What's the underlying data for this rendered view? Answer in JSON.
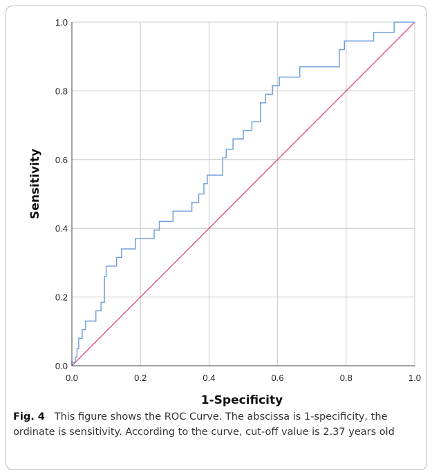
{
  "chart_data": {
    "type": "line",
    "title": "",
    "xlabel": "1-Specificity",
    "ylabel": "Sensitivity",
    "xlim": [
      0,
      1
    ],
    "ylim": [
      0,
      1
    ],
    "grid": true,
    "xticks": [
      "0.0",
      "0.2",
      "0.4",
      "0.6",
      "0.8",
      "1.0"
    ],
    "yticks": [
      "0.0",
      "0.2",
      "0.4",
      "0.6",
      "0.8",
      "1.0"
    ],
    "colors": {
      "roc": "#6fa0dc",
      "reference": "#e05b8a",
      "grid": "#c8c8c8",
      "axis": "#444444"
    },
    "series": [
      {
        "values": [
          [
            0.0,
            0.0
          ],
          [
            0.0,
            0.01
          ],
          [
            0.01,
            0.01
          ],
          [
            0.01,
            0.025
          ],
          [
            0.015,
            0.025
          ],
          [
            0.015,
            0.05
          ],
          [
            0.02,
            0.05
          ],
          [
            0.02,
            0.08
          ],
          [
            0.03,
            0.08
          ],
          [
            0.03,
            0.105
          ],
          [
            0.04,
            0.105
          ],
          [
            0.04,
            0.13
          ],
          [
            0.07,
            0.13
          ],
          [
            0.07,
            0.16
          ],
          [
            0.085,
            0.16
          ],
          [
            0.085,
            0.185
          ],
          [
            0.095,
            0.185
          ],
          [
            0.095,
            0.26
          ],
          [
            0.1,
            0.26
          ],
          [
            0.1,
            0.29
          ],
          [
            0.13,
            0.29
          ],
          [
            0.13,
            0.315
          ],
          [
            0.145,
            0.315
          ],
          [
            0.145,
            0.34
          ],
          [
            0.185,
            0.34
          ],
          [
            0.185,
            0.37
          ],
          [
            0.24,
            0.37
          ],
          [
            0.24,
            0.395
          ],
          [
            0.255,
            0.395
          ],
          [
            0.255,
            0.42
          ],
          [
            0.295,
            0.42
          ],
          [
            0.295,
            0.45
          ],
          [
            0.35,
            0.45
          ],
          [
            0.35,
            0.475
          ],
          [
            0.37,
            0.475
          ],
          [
            0.37,
            0.5
          ],
          [
            0.385,
            0.5
          ],
          [
            0.385,
            0.53
          ],
          [
            0.395,
            0.53
          ],
          [
            0.395,
            0.555
          ],
          [
            0.44,
            0.555
          ],
          [
            0.44,
            0.605
          ],
          [
            0.45,
            0.605
          ],
          [
            0.45,
            0.63
          ],
          [
            0.47,
            0.63
          ],
          [
            0.47,
            0.66
          ],
          [
            0.5,
            0.66
          ],
          [
            0.5,
            0.685
          ],
          [
            0.525,
            0.685
          ],
          [
            0.525,
            0.71
          ],
          [
            0.55,
            0.71
          ],
          [
            0.55,
            0.765
          ],
          [
            0.565,
            0.765
          ],
          [
            0.565,
            0.79
          ],
          [
            0.585,
            0.79
          ],
          [
            0.585,
            0.815
          ],
          [
            0.605,
            0.815
          ],
          [
            0.605,
            0.84
          ],
          [
            0.665,
            0.84
          ],
          [
            0.665,
            0.87
          ],
          [
            0.78,
            0.87
          ],
          [
            0.78,
            0.92
          ],
          [
            0.795,
            0.92
          ],
          [
            0.795,
            0.945
          ],
          [
            0.88,
            0.945
          ],
          [
            0.88,
            0.97
          ],
          [
            0.94,
            0.97
          ],
          [
            0.94,
            1.0
          ],
          [
            1.0,
            1.0
          ]
        ]
      },
      {
        "values": [
          [
            0,
            0
          ],
          [
            1,
            1
          ]
        ]
      }
    ]
  },
  "caption": {
    "label": "Fig. 4",
    "text": "This figure shows the ROC Curve. The abscissa is 1-specificity, the ordinate is sensitivity. According to the curve, cut-off value is 2.37 years old"
  }
}
